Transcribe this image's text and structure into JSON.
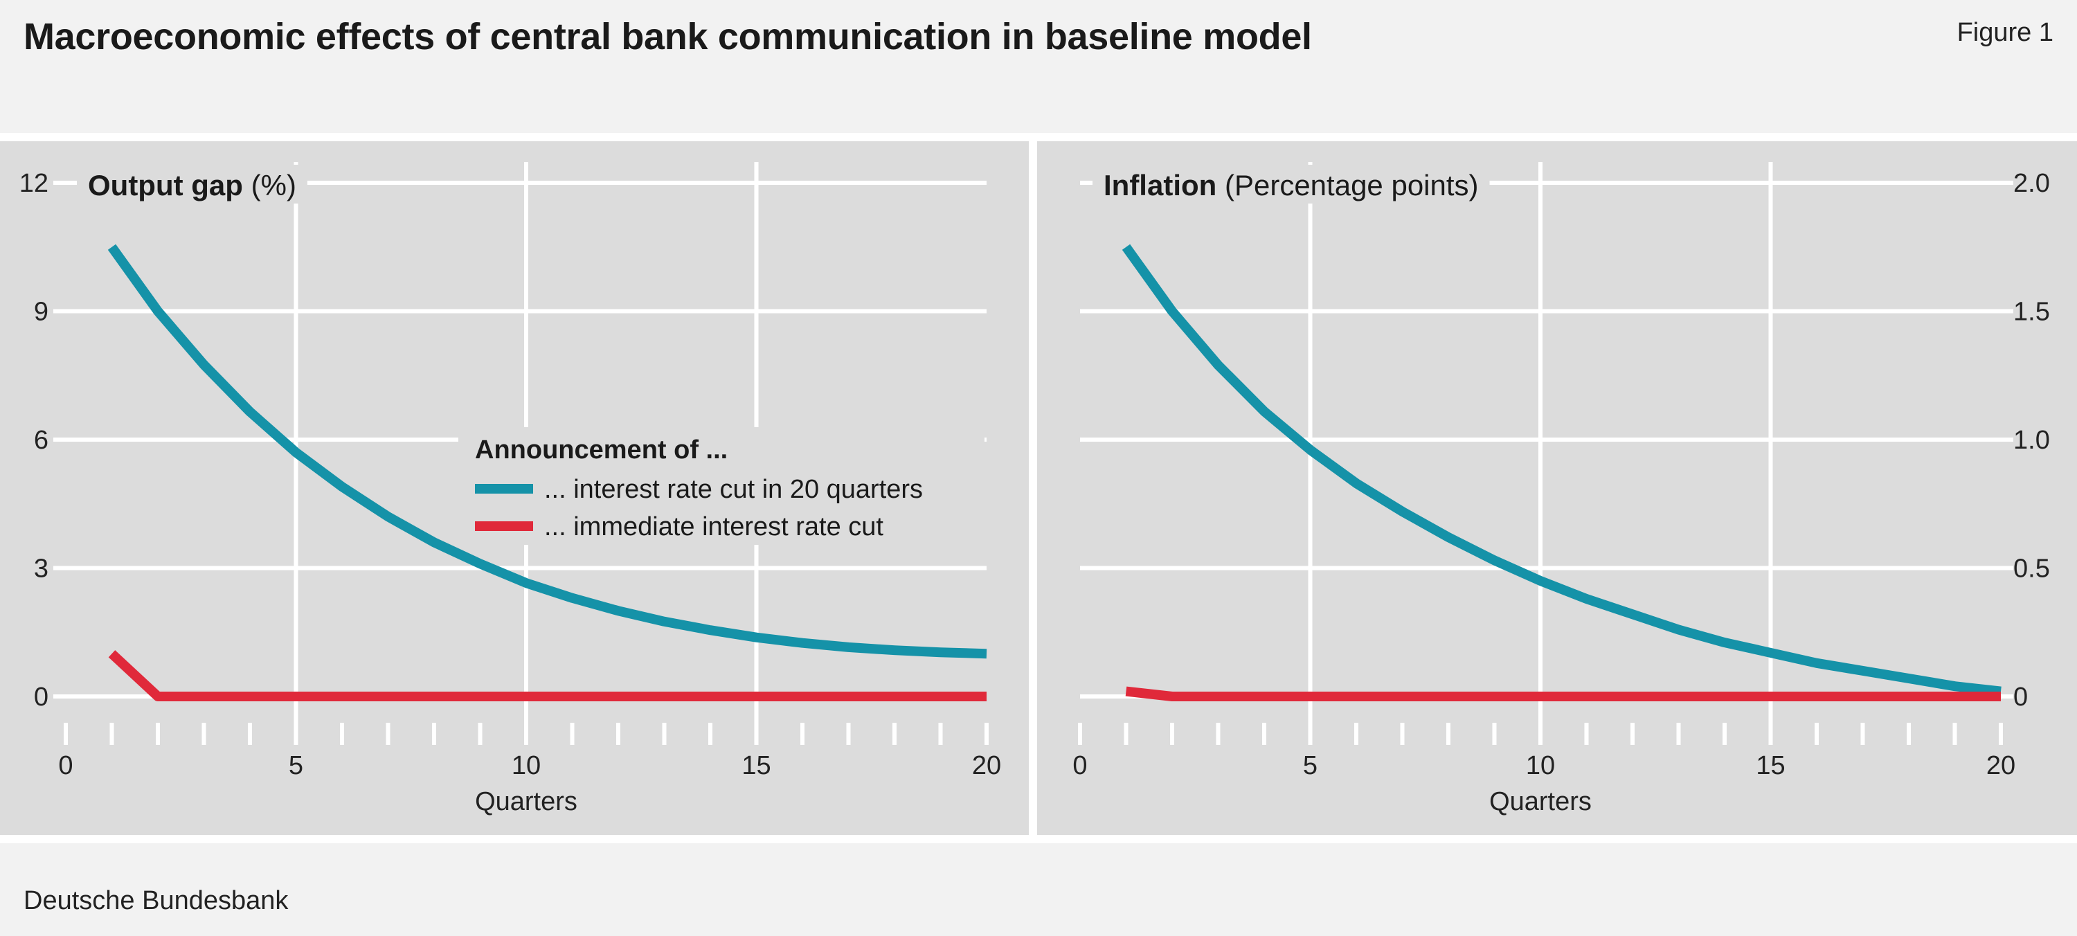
{
  "header": {
    "title": "Macroeconomic effects of central bank communication in baseline model",
    "figure_label": "Figure 1"
  },
  "footer": {
    "source": "Deutsche Bundesbank"
  },
  "colors": {
    "series_delayed": "#1592a8",
    "series_immediate": "#e0293a",
    "panel_bg": "#dcdcdc"
  },
  "legend": {
    "title": "Announcement of ...",
    "items": [
      {
        "label": "... interest rate cut in 20 quarters",
        "color": "#1592a8"
      },
      {
        "label": "... immediate interest rate cut",
        "color": "#e0293a"
      }
    ]
  },
  "chart_data": [
    {
      "type": "line",
      "title_bold": "Output gap",
      "title_unit": "(%)",
      "xlabel": "Quarters",
      "xlim": [
        0,
        20
      ],
      "xticks": [
        0,
        5,
        10,
        15,
        20
      ],
      "ylim": [
        0,
        12
      ],
      "yticks": [
        0,
        3,
        6,
        9,
        12
      ],
      "ytick_labels": [
        "0",
        "3",
        "6",
        "9",
        "12"
      ],
      "y_axis_side": "left",
      "grid": true,
      "series": [
        {
          "name": "... interest rate cut in 20 quarters",
          "color": "#1592a8",
          "x": [
            1,
            2,
            3,
            4,
            5,
            6,
            7,
            8,
            9,
            10,
            11,
            12,
            13,
            14,
            15,
            16,
            17,
            18,
            19,
            20
          ],
          "values": [
            10.5,
            9.0,
            7.75,
            6.65,
            5.7,
            4.9,
            4.2,
            3.6,
            3.1,
            2.65,
            2.3,
            2.0,
            1.75,
            1.55,
            1.38,
            1.25,
            1.15,
            1.08,
            1.03,
            1.0
          ]
        },
        {
          "name": "... immediate interest rate cut",
          "color": "#e0293a",
          "x": [
            1,
            2,
            3,
            4,
            5,
            6,
            7,
            8,
            9,
            10,
            11,
            12,
            13,
            14,
            15,
            16,
            17,
            18,
            19,
            20
          ],
          "values": [
            1.0,
            0,
            0,
            0,
            0,
            0,
            0,
            0,
            0,
            0,
            0,
            0,
            0,
            0,
            0,
            0,
            0,
            0,
            0,
            0
          ]
        }
      ]
    },
    {
      "type": "line",
      "title_bold": "Inflation",
      "title_unit": "(Percentage points)",
      "xlabel": "Quarters",
      "xlim": [
        0,
        20
      ],
      "xticks": [
        0,
        5,
        10,
        15,
        20
      ],
      "ylim": [
        0,
        2.0
      ],
      "yticks": [
        0,
        0.5,
        1.0,
        1.5,
        2.0
      ],
      "ytick_labels": [
        "0",
        "0.5",
        "1.0",
        "1.5",
        "2.0"
      ],
      "y_axis_side": "right",
      "grid": true,
      "series": [
        {
          "name": "... interest rate cut in 20 quarters",
          "color": "#1592a8",
          "x": [
            1,
            2,
            3,
            4,
            5,
            6,
            7,
            8,
            9,
            10,
            11,
            12,
            13,
            14,
            15,
            16,
            17,
            18,
            19,
            20
          ],
          "values": [
            1.75,
            1.5,
            1.29,
            1.11,
            0.96,
            0.83,
            0.72,
            0.62,
            0.53,
            0.45,
            0.38,
            0.32,
            0.26,
            0.21,
            0.17,
            0.13,
            0.1,
            0.07,
            0.04,
            0.02
          ]
        },
        {
          "name": "... immediate interest rate cut",
          "color": "#e0293a",
          "x": [
            1,
            2,
            3,
            4,
            5,
            6,
            7,
            8,
            9,
            10,
            11,
            12,
            13,
            14,
            15,
            16,
            17,
            18,
            19,
            20
          ],
          "values": [
            0.02,
            0,
            0,
            0,
            0,
            0,
            0,
            0,
            0,
            0,
            0,
            0,
            0,
            0,
            0,
            0,
            0,
            0,
            0,
            0
          ]
        }
      ]
    }
  ]
}
